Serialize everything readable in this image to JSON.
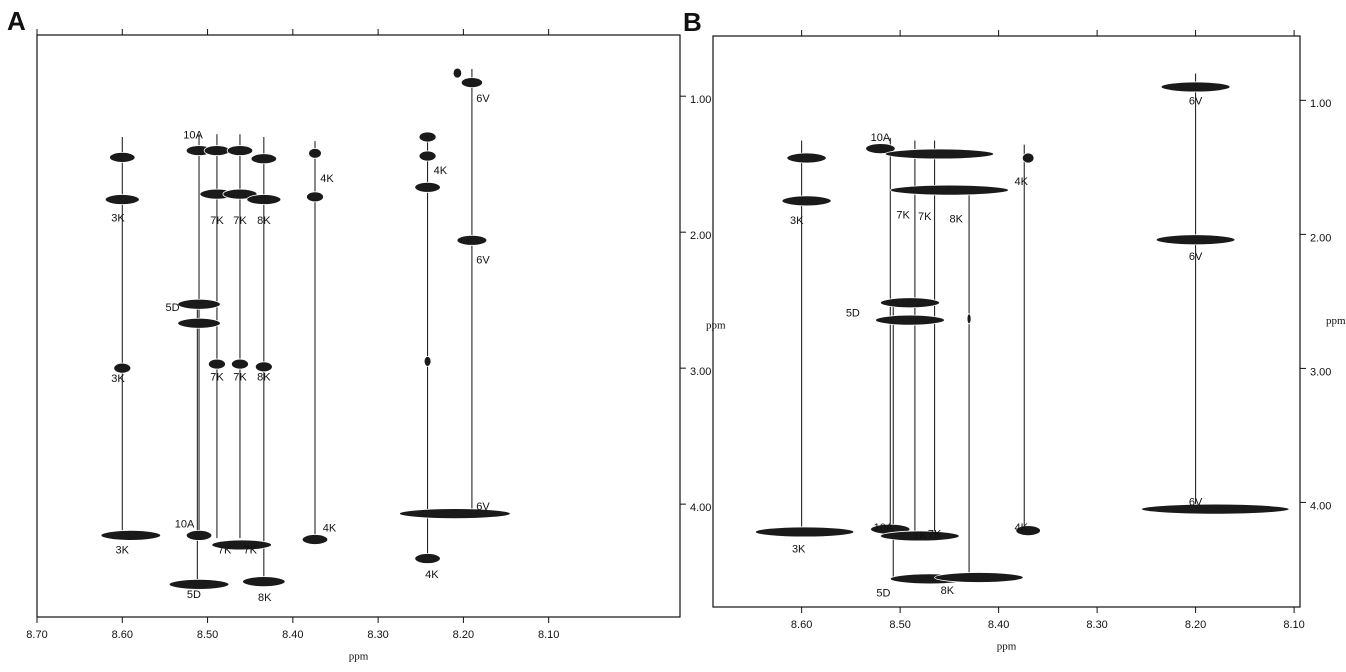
{
  "chart_data": [
    {
      "type": "contour",
      "panel": "A",
      "xlabel": "ppm",
      "ylabel": "ppm",
      "xlim": [
        8.7,
        7.946
      ],
      "ylim": [
        0.55,
        4.83
      ],
      "xticks": [
        {
          "value": 8.7,
          "label": "8.70"
        },
        {
          "value": 8.6,
          "label": "8.60"
        },
        {
          "value": 8.5,
          "label": "8.50"
        },
        {
          "value": 8.4,
          "label": "8.40"
        },
        {
          "value": 8.3,
          "label": "8.30"
        },
        {
          "value": 8.2,
          "label": "8.20"
        },
        {
          "value": 8.1,
          "label": "8.10"
        }
      ],
      "yticks": [
        {
          "value": 1,
          "label": "1.00"
        },
        {
          "value": 2,
          "label": "2.00"
        },
        {
          "value": 3,
          "label": "3.00"
        },
        {
          "value": 4,
          "label": "4.00"
        }
      ],
      "spin_systems": [
        {
          "x": 8.6,
          "y": [
            1.3,
            4.25
          ]
        },
        {
          "x": 8.51,
          "y": [
            1.28,
            4.25
          ]
        },
        {
          "x": 8.512,
          "y": [
            2.5,
            4.6
          ]
        },
        {
          "x": 8.489,
          "y": [
            1.28,
            4.25
          ]
        },
        {
          "x": 8.462,
          "y": [
            1.28,
            4.25
          ]
        },
        {
          "x": 8.434,
          "y": [
            1.3,
            4.55
          ]
        },
        {
          "x": 8.374,
          "y": [
            1.33,
            4.25
          ]
        },
        {
          "x": 8.242,
          "y": [
            1.3,
            4.4
          ]
        },
        {
          "x": 8.19,
          "y": [
            0.8,
            4.05
          ]
        }
      ],
      "peaks": [
        {
          "x": 8.6,
          "y": 1.45,
          "w": 0.03
        },
        {
          "x": 8.6,
          "y": 1.76,
          "w": 0.04
        },
        {
          "x": 8.6,
          "y": 3.0,
          "w": 0.02
        },
        {
          "x": 8.59,
          "y": 4.23,
          "w": 0.07
        },
        {
          "x": 8.51,
          "y": 1.4,
          "w": 0.03
        },
        {
          "x": 8.489,
          "y": 1.4,
          "w": 0.03
        },
        {
          "x": 8.462,
          "y": 1.4,
          "w": 0.03
        },
        {
          "x": 8.434,
          "y": 1.46,
          "w": 0.03
        },
        {
          "x": 8.489,
          "y": 1.72,
          "w": 0.04
        },
        {
          "x": 8.462,
          "y": 1.72,
          "w": 0.04
        },
        {
          "x": 8.434,
          "y": 1.76,
          "w": 0.04
        },
        {
          "x": 8.51,
          "y": 2.53,
          "w": 0.05
        },
        {
          "x": 8.51,
          "y": 2.67,
          "w": 0.05
        },
        {
          "x": 8.51,
          "y": 4.59,
          "w": 0.07
        },
        {
          "x": 8.489,
          "y": 2.97,
          "w": 0.02
        },
        {
          "x": 8.462,
          "y": 2.97,
          "w": 0.02
        },
        {
          "x": 8.434,
          "y": 2.99,
          "w": 0.02
        },
        {
          "x": 8.51,
          "y": 4.23,
          "w": 0.03
        },
        {
          "x": 8.46,
          "y": 4.3,
          "w": 0.07
        },
        {
          "x": 8.434,
          "y": 4.57,
          "w": 0.05
        },
        {
          "x": 8.374,
          "y": 1.42,
          "w": 0.015
        },
        {
          "x": 8.374,
          "y": 1.74,
          "w": 0.02
        },
        {
          "x": 8.374,
          "y": 4.26,
          "w": 0.03
        },
        {
          "x": 8.242,
          "y": 1.3,
          "w": 0.02
        },
        {
          "x": 8.242,
          "y": 1.44,
          "w": 0.02
        },
        {
          "x": 8.242,
          "y": 1.67,
          "w": 0.03
        },
        {
          "x": 8.242,
          "y": 2.95,
          "w": 0.008
        },
        {
          "x": 8.242,
          "y": 4.4,
          "w": 0.03
        },
        {
          "x": 8.19,
          "y": 0.9,
          "w": 0.025
        },
        {
          "x": 8.19,
          "y": 2.06,
          "w": 0.035
        },
        {
          "x": 8.21,
          "y": 4.07,
          "w": 0.13
        },
        {
          "x": 8.207,
          "y": 0.83,
          "w": 0.01
        }
      ],
      "annotations": [
        {
          "text": "3K",
          "x": 8.605,
          "y": 1.9
        },
        {
          "text": "3K",
          "x": 8.605,
          "y": 3.08
        },
        {
          "text": "3K",
          "x": 8.6,
          "y": 4.34
        },
        {
          "text": "10A",
          "x": 8.517,
          "y": 1.29
        },
        {
          "text": "10A",
          "x": 8.527,
          "y": 4.15
        },
        {
          "text": "5D",
          "x": 8.541,
          "y": 2.56
        },
        {
          "text": "5D",
          "x": 8.516,
          "y": 4.67
        },
        {
          "text": "7K",
          "x": 8.489,
          "y": 1.92
        },
        {
          "text": "7K",
          "x": 8.489,
          "y": 3.07
        },
        {
          "text": "7K",
          "x": 8.48,
          "y": 4.34
        },
        {
          "text": "7K",
          "x": 8.462,
          "y": 1.92
        },
        {
          "text": "7K",
          "x": 8.462,
          "y": 3.07
        },
        {
          "text": "7K",
          "x": 8.45,
          "y": 4.34
        },
        {
          "text": "8K",
          "x": 8.434,
          "y": 1.92
        },
        {
          "text": "8K",
          "x": 8.434,
          "y": 3.07
        },
        {
          "text": "8K",
          "x": 8.433,
          "y": 4.69
        },
        {
          "text": "4K",
          "x": 8.36,
          "y": 1.61
        },
        {
          "text": "4K",
          "x": 8.357,
          "y": 4.18
        },
        {
          "text": "4K",
          "x": 8.227,
          "y": 1.55
        },
        {
          "text": "4K",
          "x": 8.237,
          "y": 4.52
        },
        {
          "text": "6V",
          "x": 8.177,
          "y": 1.02
        },
        {
          "text": "6V",
          "x": 8.177,
          "y": 2.21
        },
        {
          "text": "6V",
          "x": 8.177,
          "y": 4.02
        }
      ]
    },
    {
      "type": "contour",
      "panel": "B",
      "xlabel": "ppm",
      "ylabel": "ppm",
      "xlim": [
        8.69,
        8.094
      ],
      "ylim": [
        0.52,
        4.78
      ],
      "xticks": [
        {
          "value": 8.6,
          "label": "8.60"
        },
        {
          "value": 8.5,
          "label": "8.50"
        },
        {
          "value": 8.4,
          "label": "8.40"
        },
        {
          "value": 8.3,
          "label": "8.30"
        },
        {
          "value": 8.2,
          "label": "8.20"
        },
        {
          "value": 8.1,
          "label": "8.10"
        }
      ],
      "yticks": [
        {
          "value": 1,
          "label": "1.00"
        },
        {
          "value": 2,
          "label": "2.00"
        },
        {
          "value": 3,
          "label": "3.00"
        },
        {
          "value": 4,
          "label": "4.00"
        }
      ],
      "spin_systems": [
        {
          "x": 8.6,
          "y": [
            1.3,
            4.2
          ]
        },
        {
          "x": 8.51,
          "y": [
            1.28,
            4.2
          ]
        },
        {
          "x": 8.507,
          "y": [
            2.5,
            4.57
          ]
        },
        {
          "x": 8.485,
          "y": [
            1.3,
            4.25
          ]
        },
        {
          "x": 8.465,
          "y": [
            1.3,
            4.25
          ]
        },
        {
          "x": 8.43,
          "y": [
            1.7,
            4.55
          ]
        },
        {
          "x": 8.374,
          "y": [
            1.33,
            4.21
          ]
        },
        {
          "x": 8.2,
          "y": [
            0.8,
            4.05
          ]
        }
      ],
      "peaks": [
        {
          "x": 8.595,
          "y": 1.43,
          "w": 0.04
        },
        {
          "x": 8.595,
          "y": 1.75,
          "w": 0.05
        },
        {
          "x": 8.597,
          "y": 4.22,
          "w": 0.1
        },
        {
          "x": 8.52,
          "y": 1.36,
          "w": 0.03
        },
        {
          "x": 8.46,
          "y": 1.4,
          "w": 0.11
        },
        {
          "x": 8.45,
          "y": 1.67,
          "w": 0.12
        },
        {
          "x": 8.49,
          "y": 2.51,
          "w": 0.06
        },
        {
          "x": 8.49,
          "y": 2.64,
          "w": 0.07
        },
        {
          "x": 8.47,
          "y": 4.57,
          "w": 0.08
        },
        {
          "x": 8.51,
          "y": 4.2,
          "w": 0.04
        },
        {
          "x": 8.48,
          "y": 4.25,
          "w": 0.08
        },
        {
          "x": 8.42,
          "y": 4.56,
          "w": 0.09
        },
        {
          "x": 8.37,
          "y": 1.43,
          "w": 0.012
        },
        {
          "x": 8.37,
          "y": 4.21,
          "w": 0.025
        },
        {
          "x": 8.2,
          "y": 0.9,
          "w": 0.07
        },
        {
          "x": 8.2,
          "y": 2.04,
          "w": 0.08
        },
        {
          "x": 8.18,
          "y": 4.05,
          "w": 0.15
        },
        {
          "x": 8.43,
          "y": 2.63,
          "w": 0.004
        }
      ],
      "annotations": [
        {
          "text": "3K",
          "x": 8.605,
          "y": 1.9
        },
        {
          "text": "3K",
          "x": 8.603,
          "y": 4.35
        },
        {
          "text": "10A",
          "x": 8.52,
          "y": 1.28
        },
        {
          "text": "10A",
          "x": 8.517,
          "y": 4.19
        },
        {
          "text": "5D",
          "x": 8.548,
          "y": 2.59
        },
        {
          "text": "5D",
          "x": 8.517,
          "y": 4.68
        },
        {
          "text": "7K",
          "x": 8.497,
          "y": 1.86
        },
        {
          "text": "7K",
          "x": 8.48,
          "y": 4.25
        },
        {
          "text": "7K",
          "x": 8.475,
          "y": 1.87
        },
        {
          "text": "7K",
          "x": 8.465,
          "y": 4.24
        },
        {
          "text": "8K",
          "x": 8.443,
          "y": 1.89
        },
        {
          "text": "8K",
          "x": 8.452,
          "y": 4.66
        },
        {
          "text": "4K",
          "x": 8.377,
          "y": 1.61
        },
        {
          "text": "4K",
          "x": 8.377,
          "y": 4.19
        },
        {
          "text": "6V",
          "x": 8.2,
          "y": 1.01
        },
        {
          "text": "6V",
          "x": 8.2,
          "y": 2.17
        },
        {
          "text": "6V",
          "x": 8.2,
          "y": 4.0
        }
      ]
    }
  ]
}
